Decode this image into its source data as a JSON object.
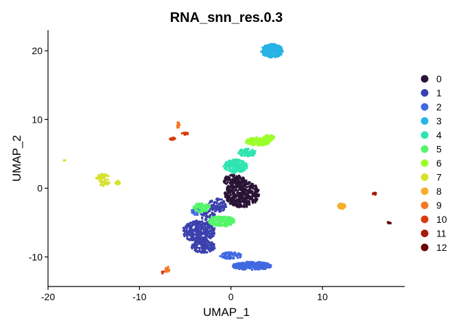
{
  "chart_data": {
    "type": "scatter",
    "title": "RNA_snn_res.0.3",
    "xlabel": "UMAP_1",
    "ylabel": "UMAP_2",
    "xlim": [
      -20,
      19
    ],
    "ylim": [
      -14.3,
      23
    ],
    "xticks": [
      -20,
      -10,
      0,
      10
    ],
    "yticks": [
      -10,
      0,
      10,
      20
    ],
    "grid": false,
    "legend_position": "right",
    "clusters": [
      {
        "name": "0",
        "color": "#2a1436",
        "regions": [
          {
            "cx": 1.2,
            "cy": -0.8,
            "rx": 1.9,
            "ry": 2.0,
            "n": 520
          },
          {
            "cx": 0.3,
            "cy": 1.2,
            "rx": 1.2,
            "ry": 0.8,
            "n": 120
          }
        ]
      },
      {
        "name": "1",
        "color": "#3b40ae",
        "regions": [
          {
            "cx": -3.5,
            "cy": -6.3,
            "rx": 1.8,
            "ry": 1.6,
            "n": 380
          },
          {
            "cx": -3.0,
            "cy": -8.5,
            "rx": 1.3,
            "ry": 0.9,
            "n": 140
          },
          {
            "cx": -1.5,
            "cy": -2.5,
            "rx": 1.0,
            "ry": 1.0,
            "n": 110
          },
          {
            "cx": -2.5,
            "cy": -4.0,
            "rx": 0.8,
            "ry": 0.8,
            "n": 60
          }
        ]
      },
      {
        "name": "2",
        "color": "#4169e1",
        "regions": [
          {
            "cx": 2.3,
            "cy": -11.3,
            "rx": 2.2,
            "ry": 0.6,
            "n": 260
          },
          {
            "cx": 0.0,
            "cy": -9.8,
            "rx": 1.2,
            "ry": 0.5,
            "n": 90
          },
          {
            "cx": -3.8,
            "cy": -3.3,
            "rx": 0.5,
            "ry": 0.6,
            "n": 40
          }
        ]
      },
      {
        "name": "3",
        "color": "#27b3e6",
        "regions": [
          {
            "cx": 4.5,
            "cy": 20.0,
            "rx": 1.2,
            "ry": 1.0,
            "n": 300
          }
        ]
      },
      {
        "name": "4",
        "color": "#2ee4b0",
        "regions": [
          {
            "cx": 0.5,
            "cy": 3.2,
            "rx": 1.3,
            "ry": 1.0,
            "n": 220
          },
          {
            "cx": 1.8,
            "cy": 5.2,
            "rx": 1.0,
            "ry": 0.6,
            "n": 90
          }
        ]
      },
      {
        "name": "5",
        "color": "#55f56a",
        "regions": [
          {
            "cx": -1.0,
            "cy": -4.8,
            "rx": 1.4,
            "ry": 0.8,
            "n": 180
          },
          {
            "cx": -3.2,
            "cy": -2.8,
            "rx": 0.9,
            "ry": 0.7,
            "n": 80
          }
        ]
      },
      {
        "name": "6",
        "color": "#9bff2d",
        "regions": [
          {
            "cx": 3.0,
            "cy": 6.8,
            "rx": 1.4,
            "ry": 0.6,
            "n": 180
          },
          {
            "cx": 4.2,
            "cy": 7.4,
            "rx": 0.6,
            "ry": 0.4,
            "n": 60
          }
        ]
      },
      {
        "name": "7",
        "color": "#d6e22c",
        "regions": [
          {
            "cx": -14.0,
            "cy": 1.2,
            "rx": 0.8,
            "ry": 0.9,
            "n": 60
          },
          {
            "cx": -12.4,
            "cy": 0.8,
            "rx": 0.3,
            "ry": 0.3,
            "n": 15
          },
          {
            "cx": -18.2,
            "cy": 4.1,
            "rx": 0.1,
            "ry": 0.1,
            "n": 3
          }
        ]
      },
      {
        "name": "8",
        "color": "#f7ad2e",
        "regions": [
          {
            "cx": 12.1,
            "cy": -2.6,
            "rx": 0.4,
            "ry": 0.4,
            "n": 80
          }
        ]
      },
      {
        "name": "9",
        "color": "#f57925",
        "regions": [
          {
            "cx": -5.8,
            "cy": 9.2,
            "rx": 0.2,
            "ry": 0.4,
            "n": 20
          },
          {
            "cx": -7.0,
            "cy": -11.8,
            "rx": 0.3,
            "ry": 0.4,
            "n": 15
          }
        ]
      },
      {
        "name": "10",
        "color": "#d93b0c",
        "regions": [
          {
            "cx": -6.4,
            "cy": 7.2,
            "rx": 0.3,
            "ry": 0.2,
            "n": 20
          },
          {
            "cx": -5.0,
            "cy": 7.9,
            "rx": 0.4,
            "ry": 0.2,
            "n": 15
          },
          {
            "cx": -7.4,
            "cy": -12.3,
            "rx": 0.2,
            "ry": 0.2,
            "n": 6
          }
        ]
      },
      {
        "name": "11",
        "color": "#a61a0a",
        "regions": [
          {
            "cx": 15.7,
            "cy": -0.8,
            "rx": 0.2,
            "ry": 0.15,
            "n": 10
          }
        ]
      },
      {
        "name": "12",
        "color": "#6b0400",
        "regions": [
          {
            "cx": 17.3,
            "cy": -5.0,
            "rx": 0.2,
            "ry": 0.15,
            "n": 10
          }
        ]
      }
    ]
  }
}
